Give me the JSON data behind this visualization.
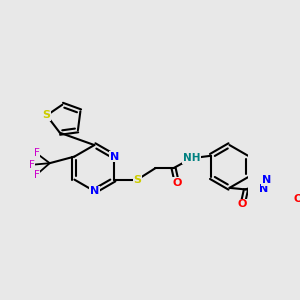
{
  "background_color": "#e8e8e8",
  "fig_width": 3.0,
  "fig_height": 3.0,
  "dpi": 100,
  "colors": {
    "bond": "#000000",
    "S": "#cccc00",
    "N": "#0000ff",
    "O": "#ff0000",
    "F": "#cc00cc",
    "NH": "#008080",
    "bg": "#e8e8e8"
  }
}
